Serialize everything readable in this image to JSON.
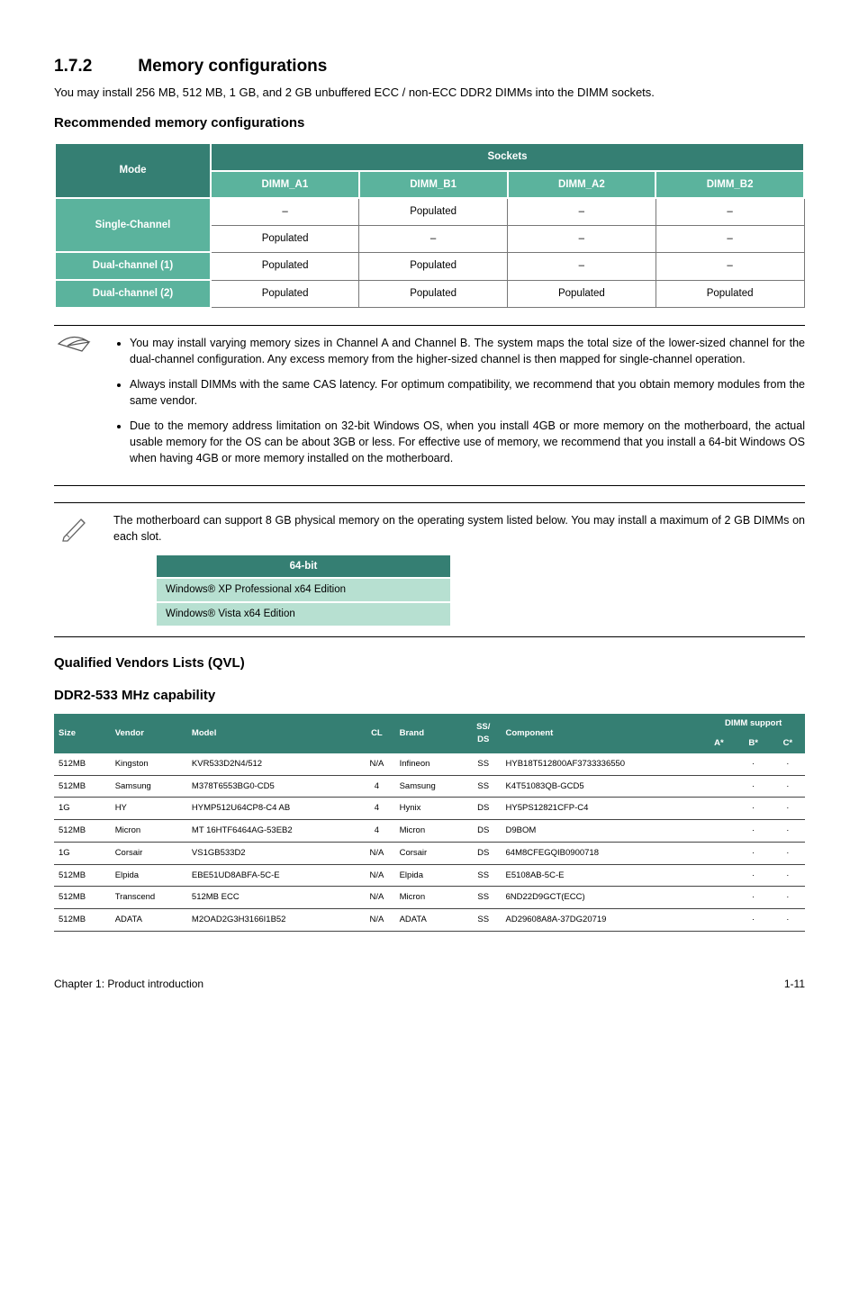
{
  "section": {
    "number": "1.7.2",
    "title": "Memory configurations",
    "intro": "You may install 256 MB, 512 MB, 1 GB, and 2 GB unbuffered ECC / non-ECC DDR2 DIMMs into the DIMM sockets."
  },
  "rec_heading": "Recommended memory configurations",
  "sockets_table": {
    "mode_hd": "Mode",
    "sockets_hd": "Sockets",
    "dimm_cols": [
      "DIMM_A1",
      "DIMM_B1",
      "DIMM_A2",
      "DIMM_B2"
    ],
    "rows": [
      {
        "label": "Single-Channel",
        "cells": [
          "–",
          "Populated",
          "–",
          "–"
        ]
      },
      {
        "label_cont": true,
        "cells": [
          "Populated",
          "–",
          "–",
          "–"
        ]
      },
      {
        "label": "Dual-channel (1)",
        "cells": [
          "Populated",
          "Populated",
          "–",
          "–"
        ]
      },
      {
        "label": "Dual-channel (2)",
        "cells": [
          "Populated",
          "Populated",
          "Populated",
          "Populated"
        ]
      }
    ],
    "colors": {
      "dark": "#357f73",
      "light": "#5bb39d",
      "border": "#777777"
    }
  },
  "notes1": {
    "bullets": [
      "You may install varying memory sizes in Channel A and Channel B. The system maps the total size of the lower-sized channel for the dual-channel configuration. Any excess memory from the higher-sized channel is then mapped for single-channel operation.",
      "Always install DIMMs with the same CAS latency. For optimum compatibility, we recommend that you obtain memory modules from the same vendor.",
      "Due to the memory address limitation on 32-bit Windows OS, when you install 4GB or more memory on the motherboard, the actual usable memory for the OS can be about 3GB or less. For effective use of memory, we recommend that you install a 64-bit Windows OS when having 4GB or more memory installed on the motherboard."
    ]
  },
  "notes2": {
    "text": "The motherboard can support 8 GB physical memory on the operating system listed below. You may install a maximum of 2 GB DIMMs on each slot.",
    "table": {
      "header": "64-bit",
      "rows": [
        "Windows® XP Professional x64 Edition",
        "Windows® Vista x64 Edition"
      ]
    }
  },
  "qvl": {
    "heading1": "Qualified Vendors Lists (QVL)",
    "heading2": "DDR2-533 MHz capability",
    "columns": {
      "size": "Size",
      "vendor": "Vendor",
      "model": "Model",
      "cl": "CL",
      "brand": "Brand",
      "ssds": "SS/\nDS",
      "component": "Component",
      "dimm_support": "DIMM support",
      "a": "A*",
      "b": "B*",
      "c": "C*"
    },
    "rows": [
      {
        "size": "512MB",
        "vendor": "Kingston",
        "model": "KVR533D2N4/512",
        "cl": "N/A",
        "brand": "Infineon",
        "ssds": "SS",
        "component": "HYB18T512800AF3733336550",
        "a": "",
        "b": "·",
        "c": "·"
      },
      {
        "size": "512MB",
        "vendor": "Samsung",
        "model": "M378T6553BG0-CD5",
        "cl": "4",
        "brand": "Samsung",
        "ssds": "SS",
        "component": "K4T51083QB-GCD5",
        "a": "",
        "b": "·",
        "c": "·"
      },
      {
        "size": "1G",
        "vendor": "HY",
        "model": "HYMP512U64CP8-C4 AB",
        "cl": "4",
        "brand": "Hynix",
        "ssds": "DS",
        "component": "HY5PS12821CFP-C4",
        "a": "",
        "b": "·",
        "c": "·"
      },
      {
        "size": "512MB",
        "vendor": "Micron",
        "model": "MT 16HTF6464AG-53EB2",
        "cl": "4",
        "brand": "Micron",
        "ssds": "DS",
        "component": "D9BOM",
        "a": "",
        "b": "·",
        "c": "·"
      },
      {
        "size": "1G",
        "vendor": "Corsair",
        "model": "VS1GB533D2",
        "cl": "N/A",
        "brand": "Corsair",
        "ssds": "DS",
        "component": "64M8CFEGQIB0900718",
        "a": "",
        "b": "·",
        "c": "·"
      },
      {
        "size": "512MB",
        "vendor": "Elpida",
        "model": "EBE51UD8ABFA-5C-E",
        "cl": "N/A",
        "brand": "Elpida",
        "ssds": "SS",
        "component": "E5108AB-5C-E",
        "a": "",
        "b": "·",
        "c": "·"
      },
      {
        "size": "512MB",
        "vendor": "Transcend",
        "model": "512MB ECC",
        "cl": "N/A",
        "brand": "Micron",
        "ssds": "SS",
        "component": "6ND22D9GCT(ECC)",
        "a": "",
        "b": "·",
        "c": "·"
      },
      {
        "size": "512MB",
        "vendor": "ADATA",
        "model": "M2OAD2G3H3166I1B52",
        "cl": "N/A",
        "brand": "ADATA",
        "ssds": "SS",
        "component": "AD29608A8A-37DG20719",
        "a": "",
        "b": "·",
        "c": "·"
      }
    ]
  },
  "footer": {
    "left": "Chapter 1: Product introduction",
    "right": "1-11"
  }
}
